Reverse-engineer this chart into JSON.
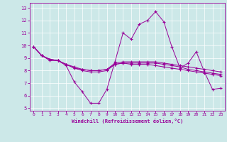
{
  "xlabel": "Windchill (Refroidissement éolien,°C)",
  "bg_color": "#cce8e8",
  "line_color": "#990099",
  "grid_color": "#ffffff",
  "ylim": [
    4.8,
    13.4
  ],
  "xlim": [
    -0.5,
    23.5
  ],
  "series": [
    [
      9.9,
      9.2,
      8.8,
      8.8,
      8.4,
      7.1,
      6.3,
      5.4,
      5.4,
      6.5,
      8.7,
      11.0,
      10.5,
      11.7,
      12.0,
      12.7,
      11.9,
      9.9,
      8.2,
      8.6,
      9.5,
      7.9,
      6.5,
      6.6
    ],
    [
      9.9,
      9.2,
      8.9,
      8.8,
      8.5,
      8.2,
      8.1,
      8.0,
      8.0,
      8.1,
      8.6,
      8.7,
      8.7,
      8.7,
      8.7,
      8.7,
      8.6,
      8.5,
      8.4,
      8.3,
      8.2,
      8.1,
      8.0,
      7.9
    ],
    [
      9.9,
      9.2,
      8.9,
      8.8,
      8.5,
      8.3,
      8.1,
      8.0,
      8.0,
      8.1,
      8.5,
      8.6,
      8.6,
      8.6,
      8.6,
      8.6,
      8.5,
      8.4,
      8.3,
      8.1,
      8.0,
      7.9,
      7.8,
      7.7
    ],
    [
      9.9,
      9.2,
      8.9,
      8.8,
      8.5,
      8.2,
      8.0,
      7.9,
      7.9,
      8.0,
      8.5,
      8.6,
      8.5,
      8.5,
      8.5,
      8.4,
      8.3,
      8.2,
      8.1,
      8.0,
      7.9,
      7.8,
      7.7,
      7.6
    ]
  ]
}
